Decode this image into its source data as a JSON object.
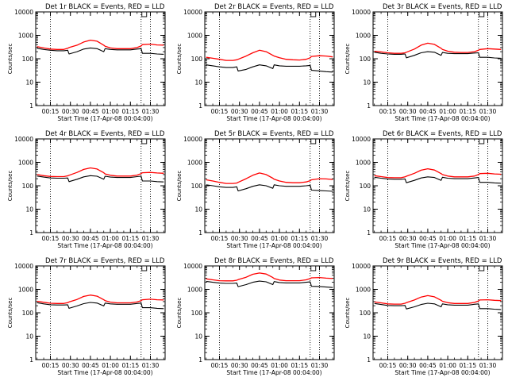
{
  "chart_data": [
    {
      "type": "line",
      "title": "Det 1r BLACK = Events, RED = LLD",
      "ylabel": "Counts/sec",
      "xlabel": "Start Time (17-Apr-08 00:04:00)",
      "xticks": [
        "00:15",
        "00:30",
        "00:45",
        "01:00",
        "01:15",
        "01:30"
      ],
      "yticks": [
        "1",
        "10",
        "100",
        "1000",
        "10000"
      ],
      "ylim": [
        1,
        10000
      ],
      "xlim": [
        "00:04",
        "01:41"
      ],
      "yscale": "log",
      "vlines": [
        "00:15",
        "01:23",
        "01:30"
      ],
      "x": [
        "00:05",
        "00:10",
        "00:15",
        "00:20",
        "00:25",
        "00:28",
        "00:29",
        "00:35",
        "00:40",
        "00:45",
        "00:50",
        "00:55",
        "00:56",
        "01:00",
        "01:05",
        "01:10",
        "01:15",
        "01:20",
        "01:23",
        "01:24",
        "01:30",
        "01:35",
        "01:40"
      ],
      "series": [
        {
          "name": "LLD",
          "color": "#ff0000",
          "values": [
            330,
            290,
            260,
            250,
            250,
            280,
            300,
            380,
            520,
            620,
            560,
            380,
            340,
            290,
            270,
            270,
            270,
            300,
            350,
            400,
            420,
            390,
            380
          ]
        },
        {
          "name": "Events",
          "color": "#000000",
          "values": [
            280,
            250,
            230,
            220,
            220,
            230,
            160,
            200,
            260,
            290,
            270,
            200,
            270,
            250,
            240,
            240,
            240,
            260,
            270,
            170,
            170,
            160,
            155
          ]
        }
      ]
    },
    {
      "type": "line",
      "title": "Det 2r BLACK = Events, RED = LLD",
      "ylabel": "Counts/sec",
      "xlabel": "Start Time (17-Apr-08 00:04:00)",
      "xticks": [
        "00:15",
        "00:30",
        "00:45",
        "01:00",
        "01:15",
        "01:30"
      ],
      "yticks": [
        "1",
        "10",
        "100",
        "1000",
        "10000"
      ],
      "ylim": [
        1,
        10000
      ],
      "xlim": [
        "00:04",
        "01:41"
      ],
      "yscale": "log",
      "vlines": [
        "00:15",
        "01:23",
        "01:30"
      ],
      "x": [
        "00:05",
        "00:10",
        "00:15",
        "00:20",
        "00:25",
        "00:28",
        "00:29",
        "00:35",
        "00:40",
        "00:45",
        "00:50",
        "00:55",
        "00:56",
        "01:00",
        "01:05",
        "01:10",
        "01:15",
        "01:20",
        "01:23",
        "01:24",
        "01:30",
        "01:35",
        "01:40"
      ],
      "series": [
        {
          "name": "LLD",
          "color": "#ff0000",
          "values": [
            115,
            105,
            95,
            85,
            85,
            90,
            95,
            130,
            180,
            230,
            200,
            140,
            130,
            110,
            95,
            90,
            88,
            95,
            110,
            125,
            135,
            130,
            120
          ]
        },
        {
          "name": "Events",
          "color": "#000000",
          "values": [
            55,
            50,
            45,
            42,
            42,
            45,
            30,
            35,
            45,
            55,
            50,
            38,
            55,
            50,
            48,
            48,
            48,
            50,
            52,
            32,
            30,
            28,
            27
          ]
        }
      ]
    },
    {
      "type": "line",
      "title": "Det 3r BLACK = Events, RED = LLD",
      "ylabel": "Counts/sec",
      "xlabel": "Start Time (17-Apr-08 00:04:00)",
      "xticks": [
        "00:15",
        "00:30",
        "00:45",
        "01:00",
        "01:15",
        "01:30"
      ],
      "yticks": [
        "1",
        "10",
        "100",
        "1000",
        "10000"
      ],
      "ylim": [
        1,
        10000
      ],
      "xlim": [
        "00:04",
        "01:41"
      ],
      "yscale": "log",
      "vlines": [
        "00:15",
        "01:23",
        "01:30"
      ],
      "x": [
        "00:05",
        "00:10",
        "00:15",
        "00:20",
        "00:25",
        "00:28",
        "00:29",
        "00:35",
        "00:40",
        "00:45",
        "00:50",
        "00:55",
        "00:56",
        "01:00",
        "01:05",
        "01:10",
        "01:15",
        "01:20",
        "01:23",
        "01:24",
        "01:30",
        "01:35",
        "01:40"
      ],
      "series": [
        {
          "name": "LLD",
          "color": "#ff0000",
          "values": [
            210,
            195,
            180,
            170,
            170,
            180,
            190,
            260,
            380,
            460,
            410,
            280,
            250,
            210,
            190,
            185,
            185,
            200,
            230,
            250,
            270,
            260,
            250
          ]
        },
        {
          "name": "Events",
          "color": "#000000",
          "values": [
            190,
            170,
            160,
            155,
            155,
            160,
            110,
            140,
            180,
            200,
            190,
            140,
            185,
            170,
            165,
            165,
            165,
            175,
            180,
            115,
            115,
            108,
            105
          ]
        }
      ]
    },
    {
      "type": "line",
      "title": "Det 4r BLACK = Events, RED = LLD",
      "ylabel": "Counts/sec",
      "xlabel": "Start Time (17-Apr-08 00:04:00)",
      "xticks": [
        "00:15",
        "00:30",
        "00:45",
        "01:00",
        "01:15",
        "01:30"
      ],
      "yticks": [
        "1",
        "10",
        "100",
        "1000",
        "10000"
      ],
      "ylim": [
        1,
        10000
      ],
      "xlim": [
        "00:04",
        "01:41"
      ],
      "yscale": "log",
      "vlines": [
        "00:15",
        "01:23",
        "01:30"
      ],
      "x": [
        "00:05",
        "00:10",
        "00:15",
        "00:20",
        "00:25",
        "00:28",
        "00:29",
        "00:35",
        "00:40",
        "00:45",
        "00:50",
        "00:55",
        "00:56",
        "01:00",
        "01:05",
        "01:10",
        "01:15",
        "01:20",
        "01:23",
        "01:24",
        "01:30",
        "01:35",
        "01:40"
      ],
      "series": [
        {
          "name": "LLD",
          "color": "#ff0000",
          "values": [
            300,
            270,
            250,
            245,
            245,
            265,
            280,
            370,
            500,
            580,
            520,
            360,
            320,
            280,
            260,
            260,
            260,
            285,
            330,
            360,
            370,
            350,
            340
          ]
        },
        {
          "name": "Events",
          "color": "#000000",
          "values": [
            260,
            235,
            215,
            210,
            210,
            215,
            150,
            190,
            240,
            270,
            255,
            190,
            255,
            235,
            225,
            225,
            225,
            245,
            255,
            160,
            160,
            150,
            145
          ]
        }
      ]
    },
    {
      "type": "line",
      "title": "Det 5r BLACK = Events, RED = LLD",
      "ylabel": "Counts/sec",
      "xlabel": "Start Time (17-Apr-08 00:04:00)",
      "xticks": [
        "00:15",
        "00:30",
        "00:45",
        "01:00",
        "01:15",
        "01:30"
      ],
      "yticks": [
        "1",
        "10",
        "100",
        "1000",
        "10000"
      ],
      "ylim": [
        1,
        10000
      ],
      "xlim": [
        "00:04",
        "01:41"
      ],
      "yscale": "log",
      "vlines": [
        "00:15",
        "01:23",
        "01:30"
      ],
      "x": [
        "00:05",
        "00:10",
        "00:15",
        "00:20",
        "00:25",
        "00:28",
        "00:29",
        "00:35",
        "00:40",
        "00:45",
        "00:50",
        "00:55",
        "00:56",
        "01:00",
        "01:05",
        "01:10",
        "01:15",
        "01:20",
        "01:23",
        "01:24",
        "01:30",
        "01:35",
        "01:40"
      ],
      "series": [
        {
          "name": "LLD",
          "color": "#ff0000",
          "values": [
            180,
            160,
            140,
            125,
            125,
            130,
            140,
            200,
            280,
            350,
            300,
            210,
            190,
            160,
            140,
            135,
            135,
            145,
            165,
            180,
            200,
            195,
            185
          ]
        },
        {
          "name": "Events",
          "color": "#000000",
          "values": [
            110,
            100,
            90,
            85,
            85,
            90,
            60,
            75,
            95,
            110,
            100,
            78,
            110,
            100,
            95,
            95,
            95,
            100,
            105,
            65,
            62,
            60,
            58
          ]
        }
      ]
    },
    {
      "type": "line",
      "title": "Det 6r BLACK = Events, RED = LLD",
      "ylabel": "Counts/sec",
      "xlabel": "Start Time (17-Apr-08 00:04:00)",
      "xticks": [
        "00:15",
        "00:30",
        "00:45",
        "01:00",
        "01:15",
        "01:30"
      ],
      "yticks": [
        "1",
        "10",
        "100",
        "1000",
        "10000"
      ],
      "ylim": [
        1,
        10000
      ],
      "xlim": [
        "00:04",
        "01:41"
      ],
      "yscale": "log",
      "vlines": [
        "00:15",
        "01:23",
        "01:30"
      ],
      "x": [
        "00:05",
        "00:10",
        "00:15",
        "00:20",
        "00:25",
        "00:28",
        "00:29",
        "00:35",
        "00:40",
        "00:45",
        "00:50",
        "00:55",
        "00:56",
        "01:00",
        "01:05",
        "01:10",
        "01:15",
        "01:20",
        "01:23",
        "01:24",
        "01:30",
        "01:35",
        "01:40"
      ],
      "series": [
        {
          "name": "LLD",
          "color": "#ff0000",
          "values": [
            270,
            245,
            225,
            220,
            220,
            240,
            255,
            340,
            460,
            530,
            470,
            330,
            300,
            260,
            240,
            240,
            240,
            260,
            300,
            330,
            340,
            320,
            310
          ]
        },
        {
          "name": "Events",
          "color": "#000000",
          "values": [
            230,
            210,
            195,
            190,
            190,
            195,
            135,
            170,
            215,
            240,
            225,
            170,
            230,
            210,
            200,
            200,
            200,
            215,
            225,
            140,
            140,
            132,
            128
          ]
        }
      ]
    },
    {
      "type": "line",
      "title": "Det 7r BLACK = Events, RED = LLD",
      "ylabel": "Counts/sec",
      "xlabel": "Start Time (17-Apr-08 00:04:00)",
      "xticks": [
        "00:15",
        "00:30",
        "00:45",
        "01:00",
        "01:15",
        "01:30"
      ],
      "yticks": [
        "1",
        "10",
        "100",
        "1000",
        "10000"
      ],
      "ylim": [
        1,
        10000
      ],
      "xlim": [
        "00:04",
        "01:41"
      ],
      "yscale": "log",
      "vlines": [
        "00:15",
        "01:23",
        "01:30"
      ],
      "x": [
        "00:05",
        "00:10",
        "00:15",
        "00:20",
        "00:25",
        "00:28",
        "00:29",
        "00:35",
        "00:40",
        "00:45",
        "00:50",
        "00:55",
        "00:56",
        "01:00",
        "01:05",
        "01:10",
        "01:15",
        "01:20",
        "01:23",
        "01:24",
        "01:30",
        "01:35",
        "01:40"
      ],
      "series": [
        {
          "name": "LLD",
          "color": "#ff0000",
          "values": [
            310,
            280,
            255,
            250,
            250,
            270,
            290,
            370,
            500,
            570,
            510,
            360,
            330,
            285,
            265,
            265,
            265,
            290,
            330,
            360,
            380,
            360,
            350
          ]
        },
        {
          "name": "Events",
          "color": "#000000",
          "values": [
            270,
            240,
            220,
            215,
            215,
            220,
            155,
            195,
            245,
            275,
            260,
            195,
            260,
            240,
            230,
            230,
            230,
            250,
            260,
            165,
            165,
            155,
            150
          ]
        }
      ]
    },
    {
      "type": "line",
      "title": "Det 8r BLACK = Events, RED = LLD",
      "ylabel": "Counts/sec",
      "xlabel": "Start Time (17-Apr-08 00:04:00)",
      "xticks": [
        "00:15",
        "00:30",
        "00:45",
        "01:00",
        "01:15",
        "01:30"
      ],
      "yticks": [
        "1",
        "10",
        "100",
        "1000",
        "10000"
      ],
      "ylim": [
        1,
        10000
      ],
      "xlim": [
        "00:04",
        "01:41"
      ],
      "yscale": "log",
      "vlines": [
        "00:15",
        "01:23",
        "01:30"
      ],
      "x": [
        "00:05",
        "00:10",
        "00:15",
        "00:20",
        "00:25",
        "00:28",
        "00:29",
        "00:35",
        "00:40",
        "00:45",
        "00:50",
        "00:55",
        "00:56",
        "01:00",
        "01:05",
        "01:10",
        "01:15",
        "01:20",
        "01:23",
        "01:24",
        "01:30",
        "01:35",
        "01:40"
      ],
      "series": [
        {
          "name": "LLD",
          "color": "#ff0000",
          "values": [
            2800,
            2550,
            2350,
            2300,
            2300,
            2450,
            2600,
            3300,
            4400,
            5000,
            4500,
            3200,
            2900,
            2500,
            2350,
            2350,
            2350,
            2550,
            2900,
            3100,
            3200,
            3000,
            2900
          ]
        },
        {
          "name": "Events",
          "color": "#000000",
          "values": [
            2200,
            2000,
            1850,
            1800,
            1800,
            1850,
            1300,
            1600,
            2000,
            2250,
            2100,
            1600,
            2150,
            1950,
            1880,
            1880,
            1880,
            2000,
            2080,
            1350,
            1320,
            1250,
            1200
          ]
        }
      ]
    },
    {
      "type": "line",
      "title": "Det 9r BLACK = Events, RED = LLD",
      "ylabel": "Counts/sec",
      "xlabel": "Start Time (17-Apr-08 00:04:00)",
      "xticks": [
        "00:15",
        "00:30",
        "00:45",
        "01:00",
        "01:15",
        "01:30"
      ],
      "yticks": [
        "1",
        "10",
        "100",
        "1000",
        "10000"
      ],
      "ylim": [
        1,
        10000
      ],
      "xlim": [
        "00:04",
        "01:41"
      ],
      "yscale": "log",
      "vlines": [
        "00:15",
        "01:23",
        "01:30"
      ],
      "x": [
        "00:05",
        "00:10",
        "00:15",
        "00:20",
        "00:25",
        "00:28",
        "00:29",
        "00:35",
        "00:40",
        "00:45",
        "00:50",
        "00:55",
        "00:56",
        "01:00",
        "01:05",
        "01:10",
        "01:15",
        "01:20",
        "01:23",
        "01:24",
        "01:30",
        "01:35",
        "01:40"
      ],
      "series": [
        {
          "name": "LLD",
          "color": "#ff0000",
          "values": [
            290,
            265,
            240,
            235,
            235,
            255,
            270,
            350,
            470,
            540,
            480,
            340,
            310,
            270,
            250,
            250,
            250,
            275,
            320,
            350,
            360,
            340,
            330
          ]
        },
        {
          "name": "Events",
          "color": "#000000",
          "values": [
            250,
            225,
            205,
            200,
            200,
            205,
            145,
            180,
            225,
            255,
            240,
            180,
            240,
            220,
            212,
            212,
            212,
            230,
            240,
            150,
            150,
            142,
            138
          ]
        }
      ]
    }
  ]
}
